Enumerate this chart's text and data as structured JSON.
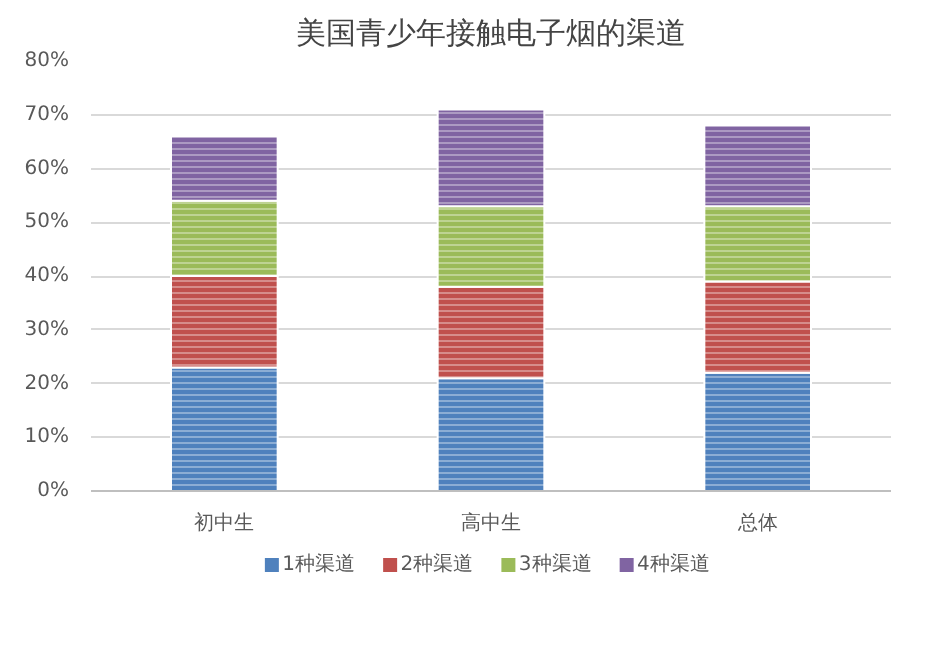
{
  "chart_data": {
    "type": "bar",
    "title": "美国青少年接触电子烟的渠道",
    "categories": [
      "初中生",
      "高中生",
      "总体"
    ],
    "stacked": true,
    "series": [
      {
        "name": "1种渠道",
        "color": "#4f81bd",
        "values": [
          23,
          21,
          22
        ]
      },
      {
        "name": "2种渠道",
        "color": "#c0504d",
        "values": [
          17,
          17,
          17
        ]
      },
      {
        "name": "3种渠道",
        "color": "#9bbb59",
        "values": [
          14,
          15,
          14
        ]
      },
      {
        "name": "4种渠道",
        "color": "#8064a2",
        "values": [
          12,
          18,
          15
        ]
      }
    ],
    "ylim": [
      0,
      80
    ],
    "yticks": [
      {
        "value": 0,
        "label": "0%"
      },
      {
        "value": 10,
        "label": "10%"
      },
      {
        "value": 20,
        "label": "20%"
      },
      {
        "value": 30,
        "label": "30%"
      },
      {
        "value": 40,
        "label": "40%"
      },
      {
        "value": 50,
        "label": "50%"
      },
      {
        "value": 60,
        "label": "60%"
      },
      {
        "value": 70,
        "label": "70%"
      },
      {
        "value": 80,
        "label": "80%"
      }
    ],
    "grid": "y",
    "legend": "bottom"
  }
}
